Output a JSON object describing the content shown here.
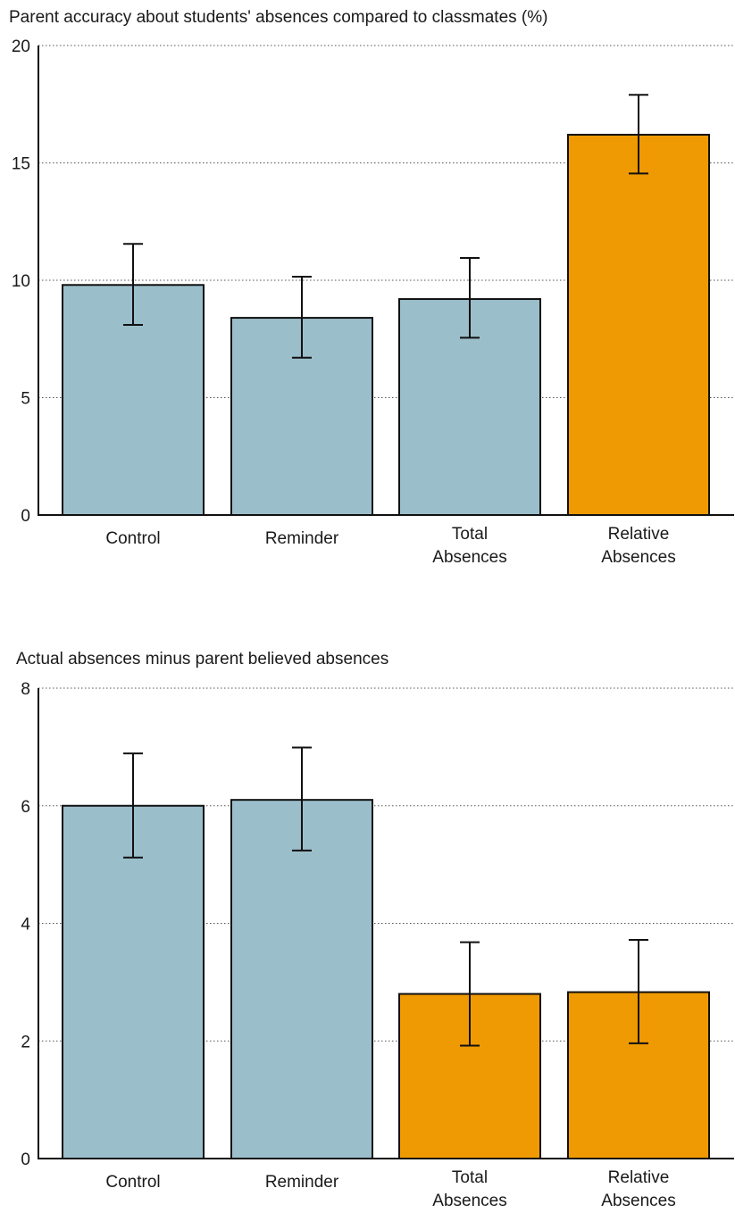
{
  "colors": {
    "blue": "#9bbecb",
    "orange": "#ef9a02"
  },
  "chart_data": [
    {
      "type": "bar",
      "title": "Parent accuracy about students' absences compared to classmates (%)",
      "ylim": [
        0,
        20
      ],
      "yticks": [
        0,
        5,
        10,
        15,
        20
      ],
      "grid": true,
      "categories": [
        [
          "Control"
        ],
        [
          "Reminder"
        ],
        [
          "Total",
          "Absences"
        ],
        [
          "Relative",
          "Absences"
        ]
      ],
      "values": [
        9.8,
        8.4,
        9.2,
        16.2
      ],
      "error_low": [
        8.1,
        6.7,
        7.55,
        14.55
      ],
      "error_high": [
        11.55,
        10.15,
        10.95,
        17.9
      ],
      "bar_colors": [
        "blue",
        "blue",
        "blue",
        "orange"
      ]
    },
    {
      "type": "bar",
      "title": "Actual absences minus parent believed absences",
      "ylim": [
        0,
        8
      ],
      "yticks": [
        0,
        2,
        4,
        6,
        8
      ],
      "grid": true,
      "categories": [
        [
          "Control"
        ],
        [
          "Reminder"
        ],
        [
          "Total",
          "Absences"
        ],
        [
          "Relative",
          "Absences"
        ]
      ],
      "values": [
        6.0,
        6.1,
        2.8,
        2.83
      ],
      "error_low": [
        5.12,
        5.24,
        1.92,
        1.96
      ],
      "error_high": [
        6.89,
        6.99,
        3.68,
        3.72
      ],
      "bar_colors": [
        "blue",
        "blue",
        "orange",
        "orange"
      ]
    }
  ]
}
